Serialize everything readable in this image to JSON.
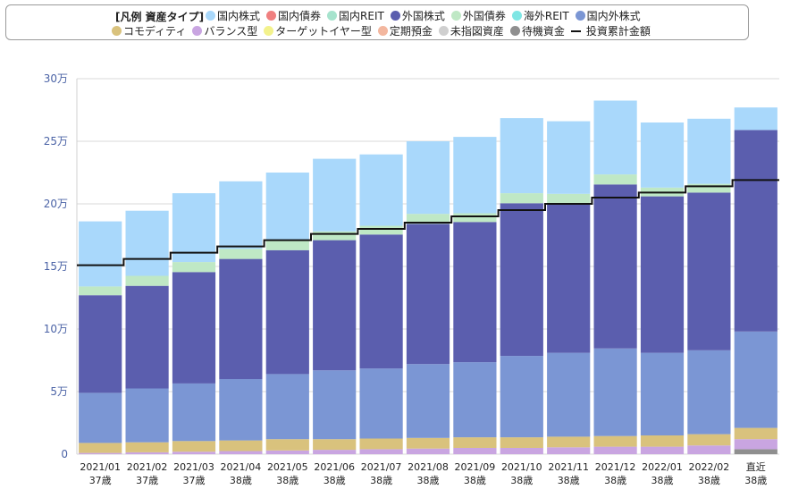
{
  "legend": {
    "title": "[凡例 資産タイプ]",
    "row1": [
      {
        "label": "国内株式",
        "color": "#a9d8fb"
      },
      {
        "label": "国内債券",
        "color": "#f08080"
      },
      {
        "label": "国内REIT",
        "color": "#a6e3cd"
      },
      {
        "label": "外国株式",
        "color": "#5b5eae"
      },
      {
        "label": "外国債券",
        "color": "#bfe8c5"
      },
      {
        "label": "海外REIT",
        "color": "#7fe6e4"
      },
      {
        "label": "国内外株式",
        "color": "#7b96d4"
      }
    ],
    "row2": [
      {
        "label": "コモディティ",
        "color": "#d9c27d"
      },
      {
        "label": "バランス型",
        "color": "#c9a5e1"
      },
      {
        "label": "ターゲットイヤー型",
        "color": "#f3f28c"
      },
      {
        "label": "定期預金",
        "color": "#f3b79f"
      },
      {
        "label": "未指図資産",
        "color": "#cfcfcf"
      },
      {
        "label": "待機資金",
        "color": "#8f8f8f"
      }
    ],
    "line_label": "投資累計金額"
  },
  "chart_data": {
    "type": "bar",
    "stacked": true,
    "y_unit": "万",
    "ylim": [
      0,
      30
    ],
    "yticks": [
      "0",
      "5万",
      "10万",
      "15万",
      "20万",
      "25万",
      "30万"
    ],
    "categories": [
      [
        "2021/01",
        "37歳"
      ],
      [
        "2021/02",
        "37歳"
      ],
      [
        "2021/03",
        "37歳"
      ],
      [
        "2021/04",
        "38歳"
      ],
      [
        "2021/05",
        "38歳"
      ],
      [
        "2021/06",
        "38歳"
      ],
      [
        "2021/07",
        "38歳"
      ],
      [
        "2021/08",
        "38歳"
      ],
      [
        "2021/09",
        "38歳"
      ],
      [
        "2021/10",
        "38歳"
      ],
      [
        "2021/11",
        "38歳"
      ],
      [
        "2021/12",
        "38歳"
      ],
      [
        "2022/01",
        "38歳"
      ],
      [
        "2022/02",
        "38歳"
      ],
      [
        "直近",
        "38歳"
      ]
    ],
    "series": [
      {
        "name": "待機資金",
        "color": "#8f8f8f",
        "values": [
          0,
          0,
          0,
          0,
          0,
          0,
          0,
          0,
          0,
          0,
          0,
          0,
          0,
          0,
          0.4
        ]
      },
      {
        "name": "バランス型",
        "color": "#c9a5e1",
        "values": [
          0.1,
          0.15,
          0.2,
          0.25,
          0.3,
          0.35,
          0.4,
          0.45,
          0.5,
          0.5,
          0.55,
          0.6,
          0.6,
          0.7,
          0.8
        ]
      },
      {
        "name": "コモディティ",
        "color": "#d9c27d",
        "values": [
          0.8,
          0.8,
          0.85,
          0.85,
          0.9,
          0.85,
          0.85,
          0.85,
          0.85,
          0.85,
          0.85,
          0.85,
          0.9,
          0.9,
          0.9
        ]
      },
      {
        "name": "国内外株式",
        "color": "#7b96d4",
        "values": [
          4.0,
          4.3,
          4.6,
          4.9,
          5.2,
          5.5,
          5.6,
          5.9,
          6.0,
          6.5,
          6.7,
          7.0,
          6.6,
          6.7,
          7.7
        ]
      },
      {
        "name": "外国株式",
        "color": "#5b5eae",
        "values": [
          7.8,
          8.2,
          8.9,
          9.6,
          9.9,
          10.4,
          10.7,
          11.2,
          11.2,
          12.2,
          11.9,
          13.1,
          12.5,
          12.6,
          16.1
        ]
      },
      {
        "name": "外国債券",
        "color": "#bfe8c5",
        "values": [
          0.7,
          0.8,
          0.8,
          0.8,
          0.8,
          0.7,
          0.7,
          0.8,
          0.7,
          0.8,
          0.8,
          0.8,
          0.7,
          0.7,
          0
        ]
      },
      {
        "name": "国内REIT",
        "color": "#a6e3cd",
        "values": [
          0,
          0,
          0,
          0,
          0,
          0,
          0,
          0,
          0,
          0,
          0,
          0,
          0,
          0,
          0
        ]
      },
      {
        "name": "国内株式",
        "color": "#a9d8fb",
        "values": [
          5.2,
          5.2,
          5.5,
          5.4,
          5.4,
          5.8,
          5.7,
          5.8,
          6.1,
          6.0,
          5.8,
          5.9,
          5.2,
          5.2,
          1.8
        ]
      }
    ],
    "line": {
      "name": "投資累計金額",
      "color": "#111111",
      "values": [
        15.1,
        15.6,
        16.1,
        16.6,
        17.1,
        17.6,
        18.0,
        18.5,
        19.0,
        19.5,
        20.0,
        20.5,
        20.9,
        21.4,
        21.9
      ]
    }
  }
}
